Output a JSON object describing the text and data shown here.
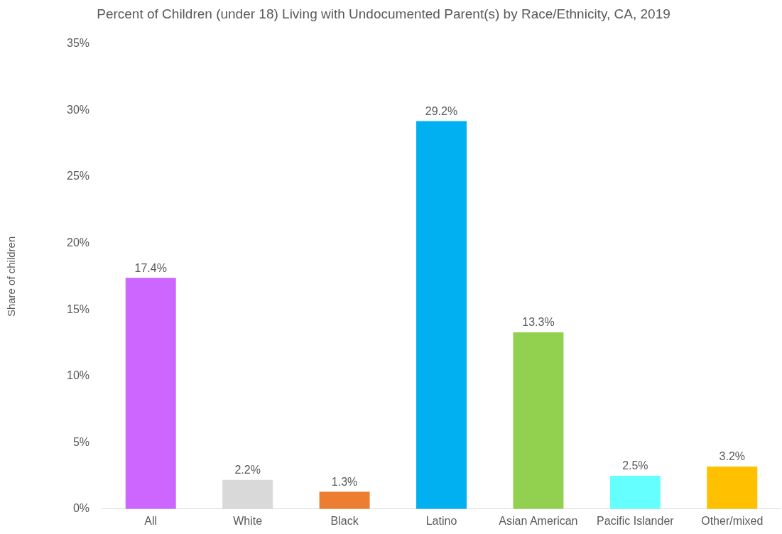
{
  "chart_data": {
    "type": "bar",
    "title": "Percent of Children (under 18) Living with Undocumented Parent(s) by Race/Ethnicity, CA, 2019",
    "ylabel": "Share of children",
    "categories": [
      "All",
      "White",
      "Black",
      "Latino",
      "Asian American",
      "Pacific Islander",
      "Other/mixed"
    ],
    "values": [
      17.4,
      2.2,
      1.3,
      29.2,
      13.3,
      2.5,
      3.2
    ],
    "colors": [
      "#cc66ff",
      "#d9d9d9",
      "#ed7d31",
      "#00b0f0",
      "#92d050",
      "#66ffff",
      "#ffc000"
    ],
    "value_labels": [
      "17.4%",
      "2.2%",
      "1.3%",
      "29.2%",
      "13.3%",
      "2.5%",
      "3.2%"
    ],
    "ylim": [
      0,
      35
    ],
    "yticks": [
      {
        "value": 0,
        "label": "0%"
      },
      {
        "value": 5,
        "label": "5%"
      },
      {
        "value": 10,
        "label": "10%"
      },
      {
        "value": 15,
        "label": "15%"
      },
      {
        "value": 20,
        "label": "20%"
      },
      {
        "value": 25,
        "label": "25%"
      },
      {
        "value": 30,
        "label": "30%"
      },
      {
        "value": 35,
        "label": "35%"
      }
    ],
    "grid": false,
    "legend": false
  }
}
